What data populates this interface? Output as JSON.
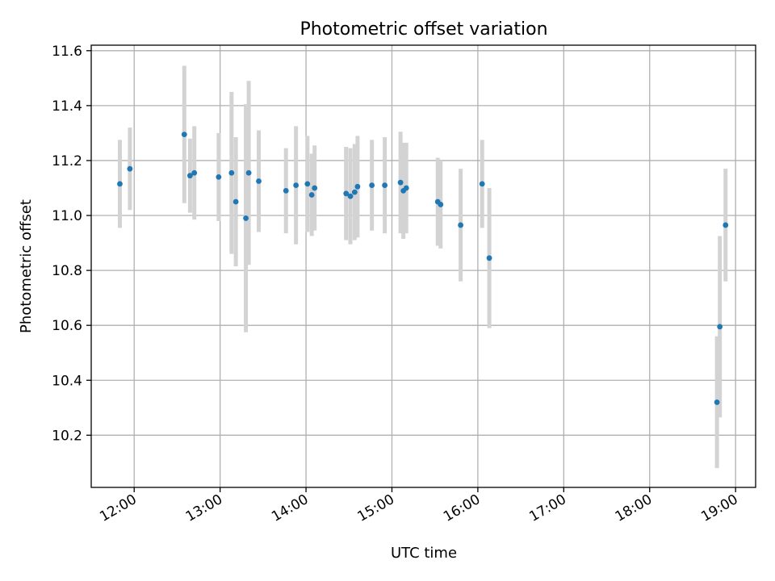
{
  "chart_data": {
    "type": "scatter",
    "title": "Photometric offset variation",
    "xlabel": "UTC time",
    "ylabel": "Photometric offset",
    "x_tick_labels": [
      "12:00",
      "13:00",
      "14:00",
      "15:00",
      "16:00",
      "17:00",
      "18:00",
      "19:00"
    ],
    "y_ticks": [
      10.2,
      10.4,
      10.6,
      10.8,
      11.0,
      11.2,
      11.4,
      11.6
    ],
    "xlim": [
      "11:30",
      "19:14"
    ],
    "ylim": [
      10.01,
      11.62
    ],
    "grid": true,
    "error_bars": true,
    "colors": {
      "point": "#1f77b4",
      "error_bar": "#d3d3d3",
      "grid": "#b0b0b0",
      "axis": "#000000"
    },
    "series": [
      {
        "points": [
          {
            "x": "11:50",
            "y": 11.115,
            "err": 0.16
          },
          {
            "x": "11:57",
            "y": 11.17,
            "err": 0.15
          },
          {
            "x": "12:35",
            "y": 11.295,
            "err": 0.25
          },
          {
            "x": "12:39",
            "y": 11.145,
            "err": 0.135
          },
          {
            "x": "12:42",
            "y": 11.155,
            "err": 0.17
          },
          {
            "x": "12:59",
            "y": 11.14,
            "err": 0.16
          },
          {
            "x": "13:08",
            "y": 11.155,
            "err": 0.295
          },
          {
            "x": "13:11",
            "y": 11.05,
            "err": 0.235
          },
          {
            "x": "13:18",
            "y": 10.99,
            "err": 0.415
          },
          {
            "x": "13:20",
            "y": 11.155,
            "err": 0.335
          },
          {
            "x": "13:27",
            "y": 11.125,
            "err": 0.185
          },
          {
            "x": "13:46",
            "y": 11.09,
            "err": 0.155
          },
          {
            "x": "13:53",
            "y": 11.11,
            "err": 0.215
          },
          {
            "x": "14:01",
            "y": 11.115,
            "err": 0.175
          },
          {
            "x": "14:04",
            "y": 11.075,
            "err": 0.15
          },
          {
            "x": "14:06",
            "y": 11.1,
            "err": 0.155
          },
          {
            "x": "14:28",
            "y": 11.08,
            "err": 0.17
          },
          {
            "x": "14:31",
            "y": 11.07,
            "err": 0.175
          },
          {
            "x": "14:34",
            "y": 11.085,
            "err": 0.175
          },
          {
            "x": "14:36",
            "y": 11.105,
            "err": 0.185
          },
          {
            "x": "14:46",
            "y": 11.11,
            "err": 0.165
          },
          {
            "x": "14:55",
            "y": 11.11,
            "err": 0.175
          },
          {
            "x": "15:06",
            "y": 11.12,
            "err": 0.185
          },
          {
            "x": "15:08",
            "y": 11.09,
            "err": 0.175
          },
          {
            "x": "15:10",
            "y": 11.1,
            "err": 0.165
          },
          {
            "x": "15:32",
            "y": 11.05,
            "err": 0.16
          },
          {
            "x": "15:34",
            "y": 11.04,
            "err": 0.16
          },
          {
            "x": "15:48",
            "y": 10.965,
            "err": 0.205
          },
          {
            "x": "16:03",
            "y": 11.115,
            "err": 0.16
          },
          {
            "x": "16:08",
            "y": 10.845,
            "err": 0.255
          },
          {
            "x": "18:47",
            "y": 10.32,
            "err": 0.24
          },
          {
            "x": "18:49",
            "y": 10.595,
            "err": 0.33
          },
          {
            "x": "18:53",
            "y": 10.965,
            "err": 0.205
          }
        ]
      }
    ]
  }
}
